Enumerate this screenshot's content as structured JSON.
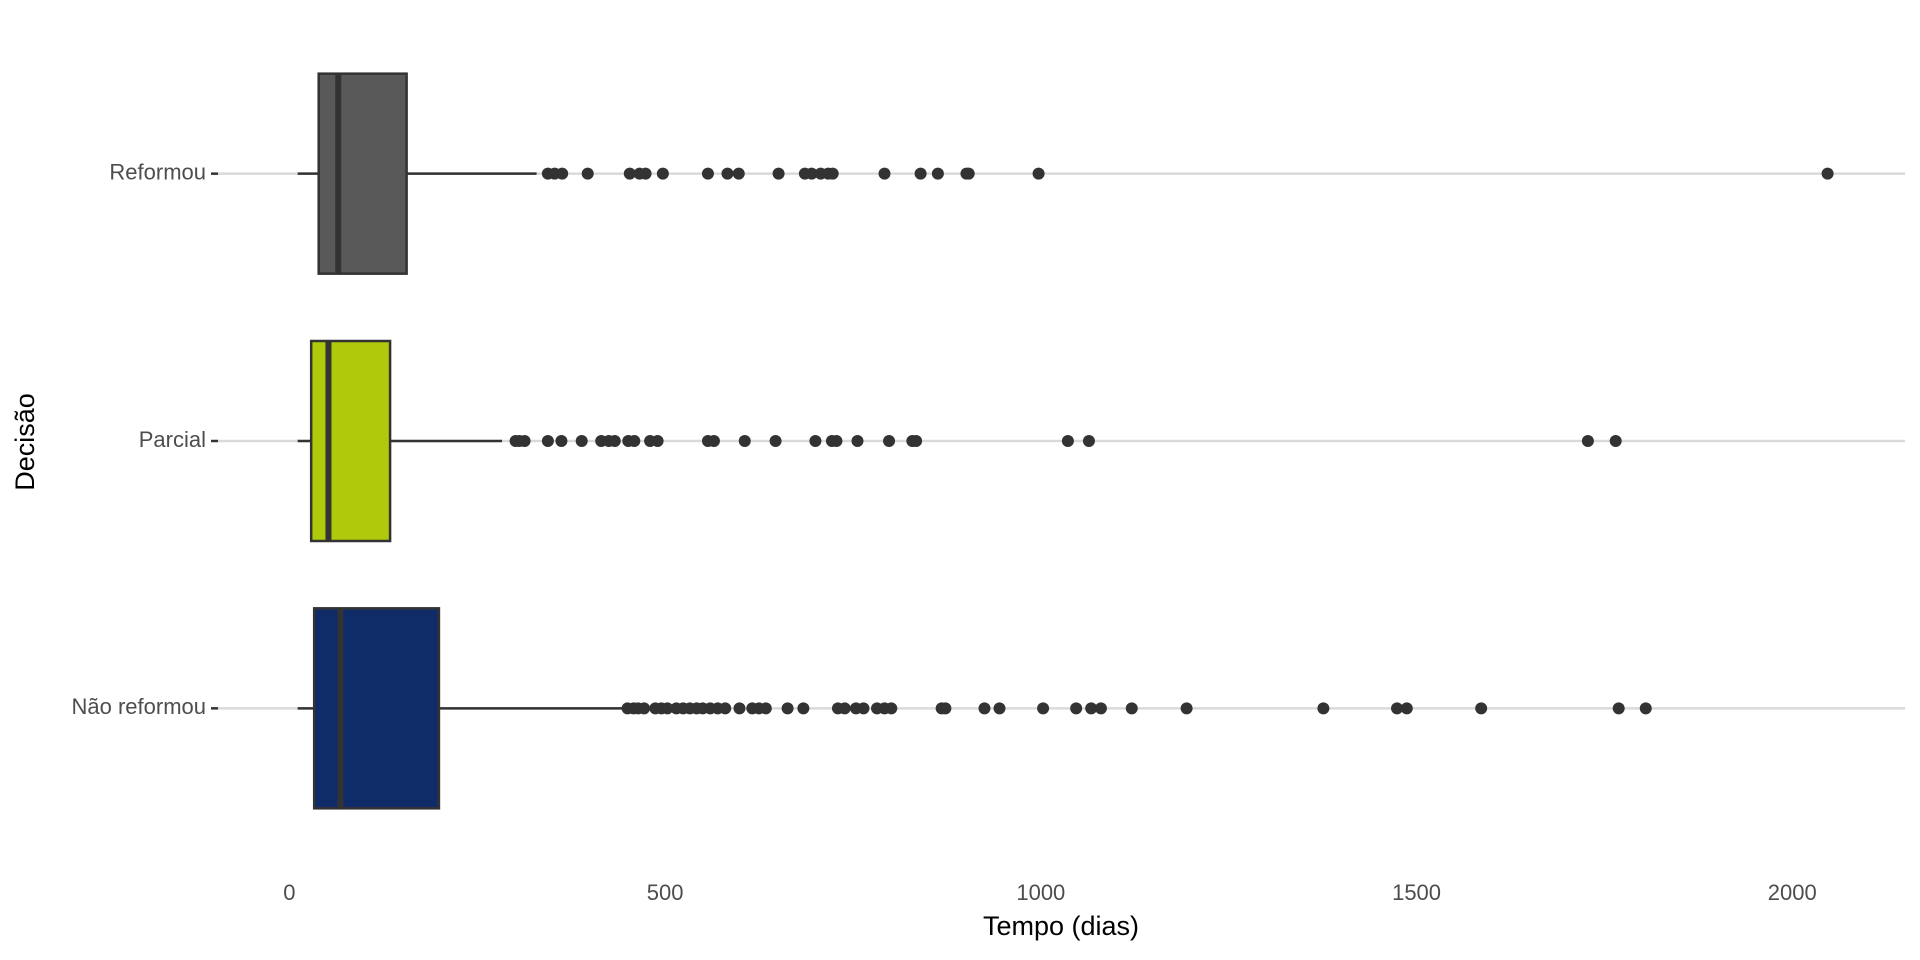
{
  "chart_data": {
    "type": "boxplot",
    "x_label": "Tempo (dias)",
    "y_label": "Decisão",
    "xlim": [
      -95,
      2150
    ],
    "xticks": [
      0,
      500,
      1000,
      1500,
      2000
    ],
    "grid": true,
    "series": [
      {
        "name": "Reformou",
        "color": "#595959",
        "whislo": 11,
        "q1": 39,
        "med": 65,
        "q3": 156,
        "whishi": 329,
        "outliers": [
          344,
          353,
          363,
          397,
          453,
          466,
          474,
          497,
          557,
          583,
          598,
          651,
          686,
          695,
          707,
          717,
          723,
          792,
          840,
          863,
          901,
          904,
          997,
          2047
        ]
      },
      {
        "name": "Parcial",
        "color": "#afca0b",
        "whislo": 11,
        "q1": 29,
        "med": 52,
        "q3": 134,
        "whishi": 283,
        "outliers": [
          301,
          306,
          313,
          344,
          362,
          389,
          415,
          425,
          433,
          451,
          459,
          480,
          490,
          557,
          565,
          606,
          647,
          700,
          722,
          728,
          756,
          798,
          829,
          834,
          1036,
          1064,
          1728,
          1765
        ]
      },
      {
        "name": "Não reformou",
        "color": "#102c68",
        "whislo": 11,
        "q1": 33,
        "med": 68,
        "q3": 199,
        "whishi": 443,
        "outliers": [
          450,
          458,
          464,
          472,
          487,
          495,
          503,
          515,
          524,
          533,
          542,
          550,
          560,
          570,
          580,
          599,
          616,
          625,
          634,
          663,
          684,
          730,
          739,
          754,
          764,
          782,
          792,
          801,
          868,
          873,
          925,
          945,
          1003,
          1047,
          1067,
          1080,
          1121,
          1194,
          1376,
          1474,
          1487,
          1586,
          1769,
          1805
        ]
      }
    ]
  }
}
